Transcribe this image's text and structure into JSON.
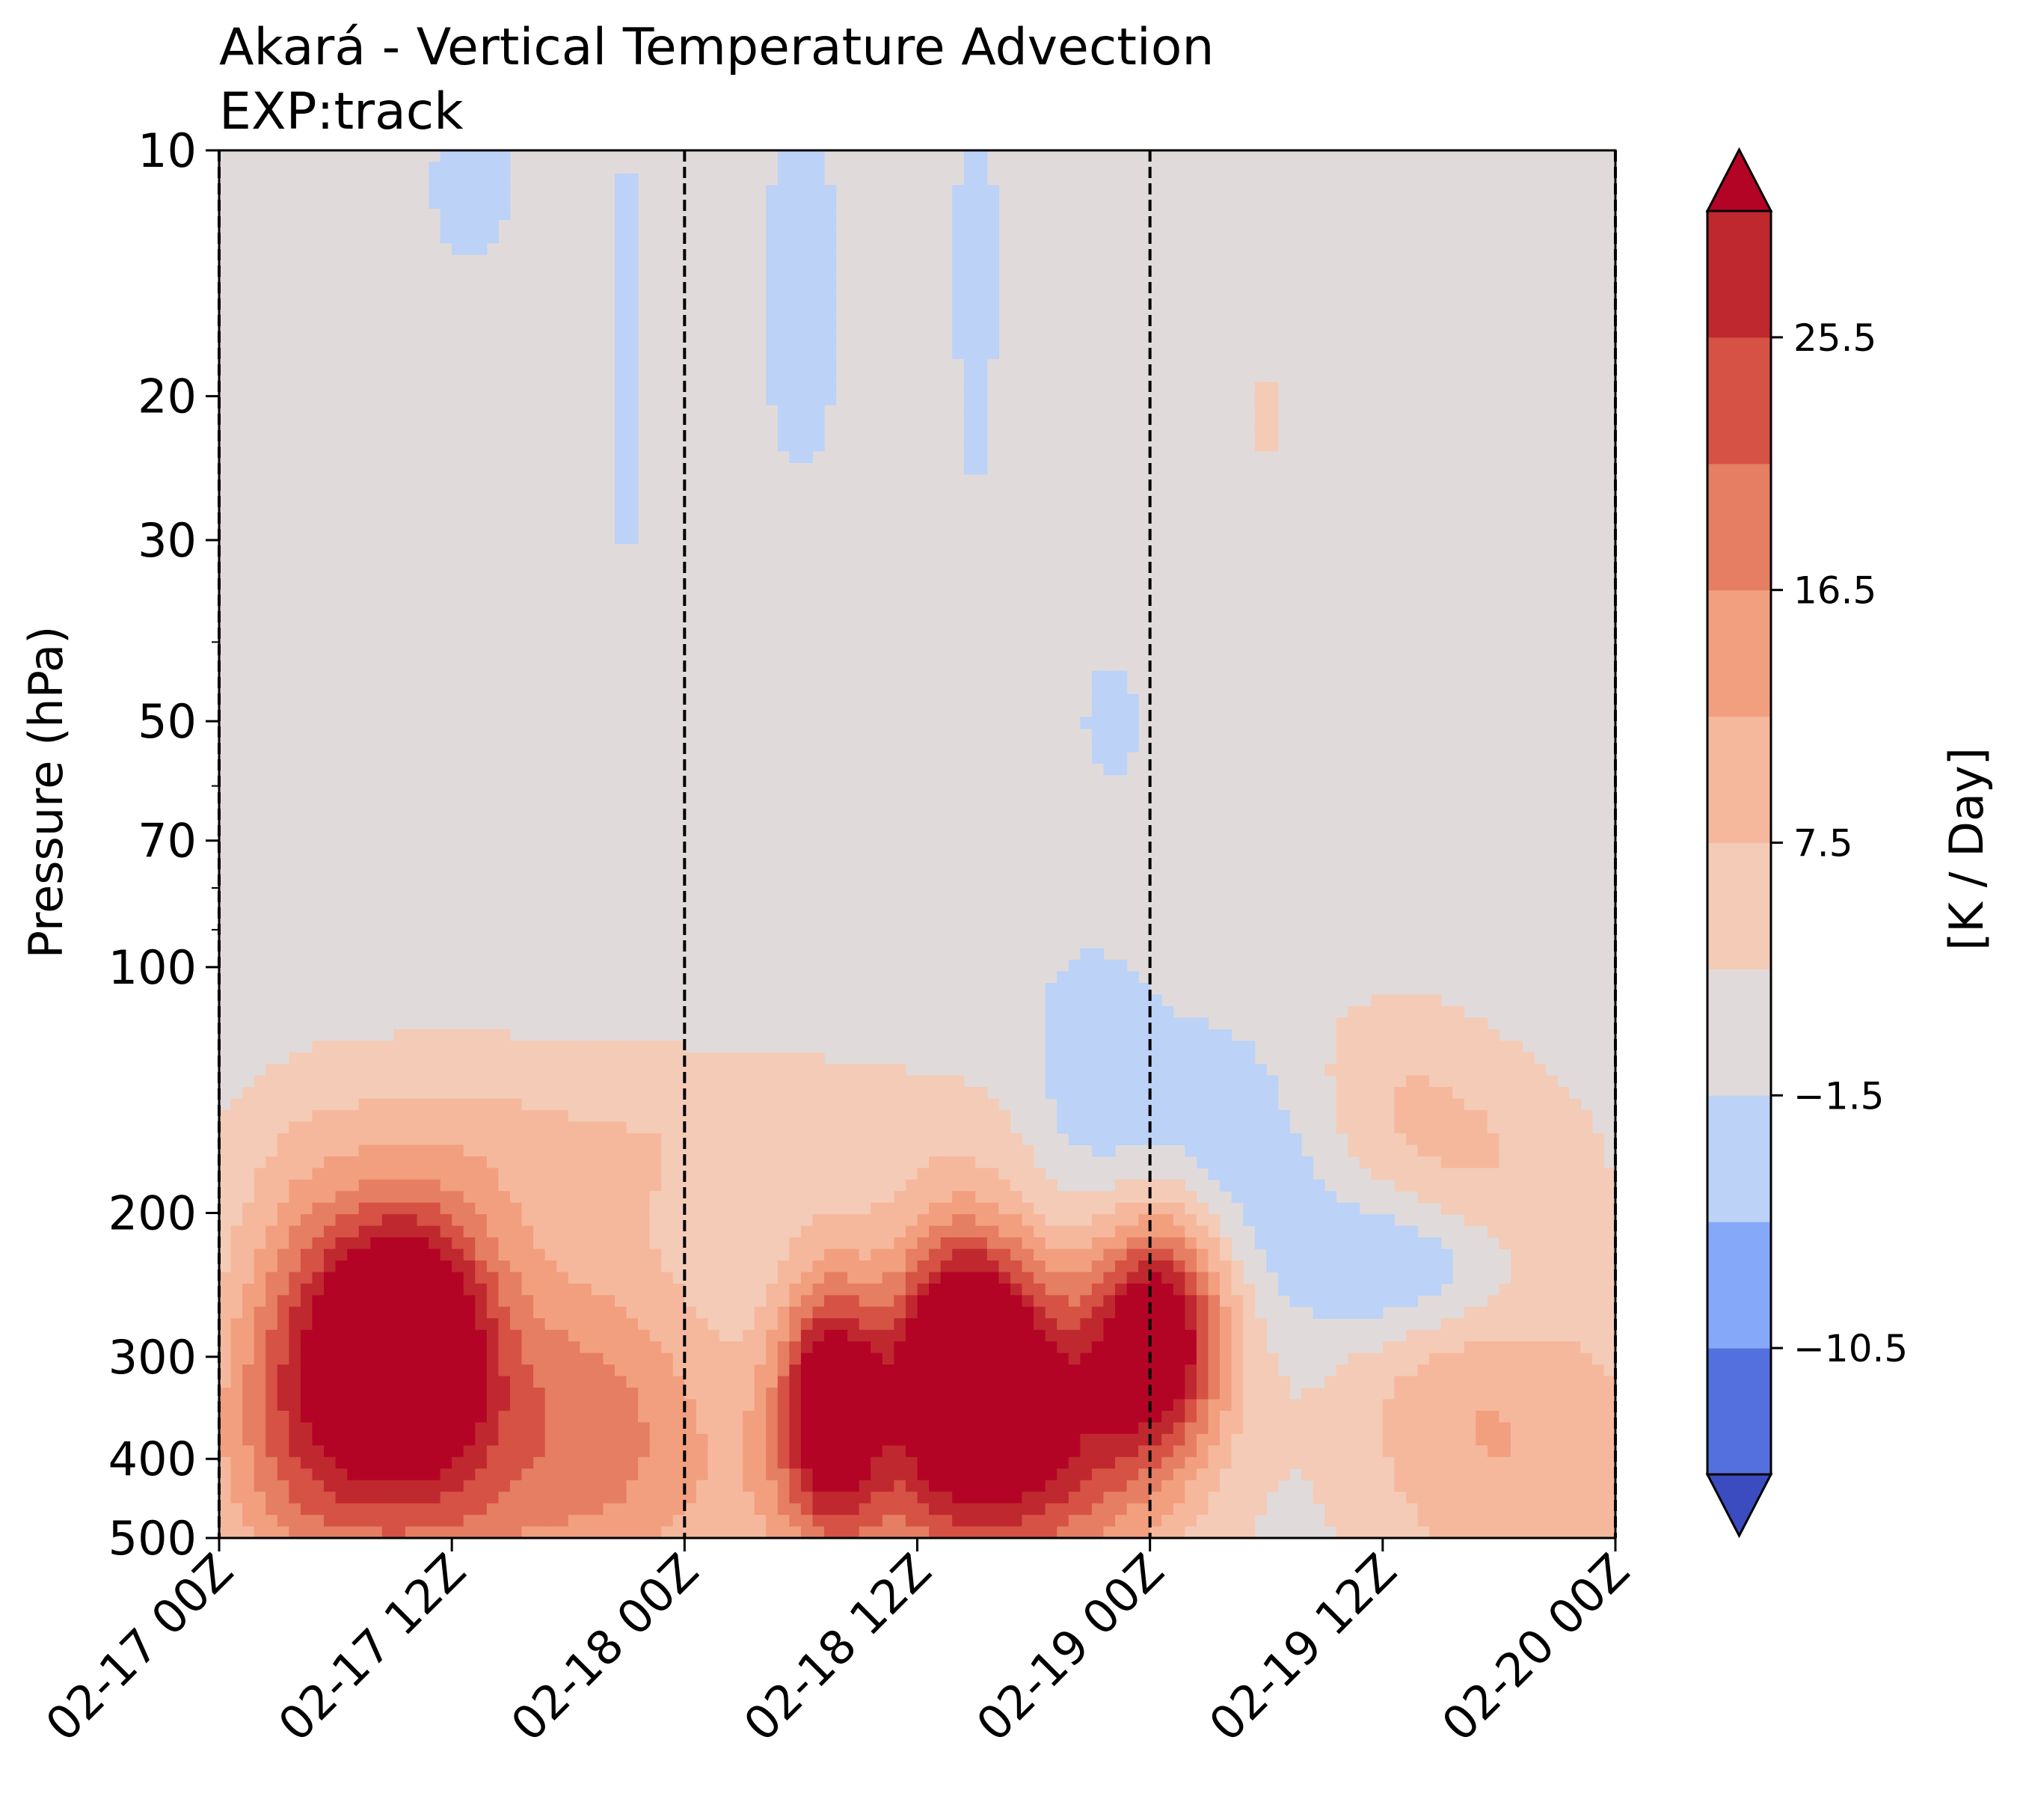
{
  "chart_data": {
    "type": "heatmap",
    "title": "Akará - Vertical Temperature Advection",
    "subtitle": "EXP:track",
    "ylabel": "Pressure (hPa)",
    "xlabel": "",
    "colorbar_label": "[K / Day]",
    "y_scale": "log",
    "y_axis_inverted": true,
    "ylim": [
      500,
      10
    ],
    "y_ticks": [
      10,
      20,
      30,
      50,
      70,
      100,
      200,
      300,
      400,
      500
    ],
    "y_minor_ticks": [
      40,
      60,
      80,
      90
    ],
    "x_ticks": [
      "02-17 00Z",
      "02-17 12Z",
      "02-18 00Z",
      "02-18 12Z",
      "02-19 00Z",
      "02-19 12Z",
      "02-20 00Z"
    ],
    "xlim_hours": [
      0,
      72
    ],
    "vertical_dashed_lines": [
      "02-17 00Z",
      "02-18 00Z",
      "02-19 00Z",
      "02-20 00Z"
    ],
    "colorbar": {
      "extend": "both",
      "levels": [
        -15,
        -10.5,
        -6,
        -1.5,
        3,
        7.5,
        12,
        16.5,
        21,
        25.5,
        30
      ],
      "tick_labels": [
        "25.5",
        "16.5",
        "7.5",
        "−1.5",
        "−10.5"
      ],
      "tick_values": [
        25.5,
        16.5,
        7.5,
        -1.5,
        -10.5
      ],
      "colors": [
        "#3b4cc0",
        "#5470de",
        "#86a8f9",
        "#bcd2f7",
        "#e0dbda",
        "#f3cbb7",
        "#f6b89c",
        "#f29f7f",
        "#e57e62",
        "#d65244",
        "#c0282f",
        "#b40426"
      ]
    },
    "features": [
      {
        "kind": "cooling",
        "level": "weak",
        "region": "upper stratosphere 10–25 hPa, scattered thin streaks"
      },
      {
        "kind": "cooling",
        "level": "moderate",
        "region": "02-19 06Z–15Z near 200–300 hPa"
      },
      {
        "kind": "warming",
        "level": "strong",
        "region": "02-17 06Z–14Z near 250–350 hPa"
      },
      {
        "kind": "warming",
        "level": "strong",
        "region": "02-18 06Z–02-19 06Z near 220–400 hPa"
      }
    ]
  }
}
